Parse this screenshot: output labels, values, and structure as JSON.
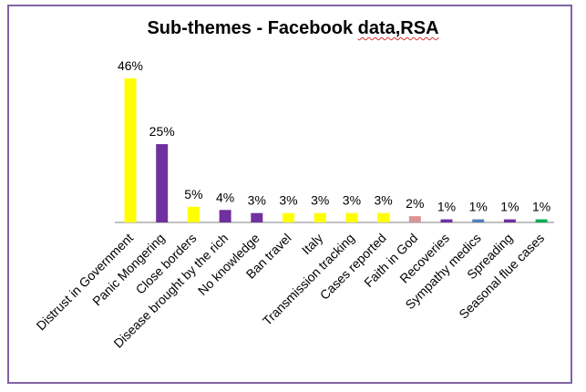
{
  "chart_data": {
    "type": "bar",
    "title_main": "Sub-themes - Facebook ",
    "title_squiggle": "data,RSA",
    "categories": [
      "Distrust in Government",
      "Panic Mongering",
      "Close borders",
      "Disease brought by the rich",
      "No knowledge",
      "Ban travel",
      "Italy",
      "Transmission tracking",
      "Cases reported",
      "Faith in God",
      "Recoveries",
      "Sympathy medics",
      "Spreading",
      "Seasonal flue cases"
    ],
    "values": [
      46,
      25,
      5,
      4,
      3,
      3,
      3,
      3,
      3,
      2,
      1,
      1,
      1,
      1
    ],
    "value_labels": [
      "46%",
      "25%",
      "5%",
      "4%",
      "3%",
      "3%",
      "3%",
      "3%",
      "3%",
      "2%",
      "1%",
      "1%",
      "1%",
      "1%"
    ],
    "colors": [
      "#ffff00",
      "#7030a0",
      "#ffff00",
      "#7030a0",
      "#7030a0",
      "#ffff00",
      "#ffff00",
      "#ffff00",
      "#ffff00",
      "#d99694",
      "#7030a0",
      "#4f81bd",
      "#7030a0",
      "#00b050"
    ],
    "ylim": [
      0,
      46
    ],
    "grid": false,
    "legend": "none"
  }
}
